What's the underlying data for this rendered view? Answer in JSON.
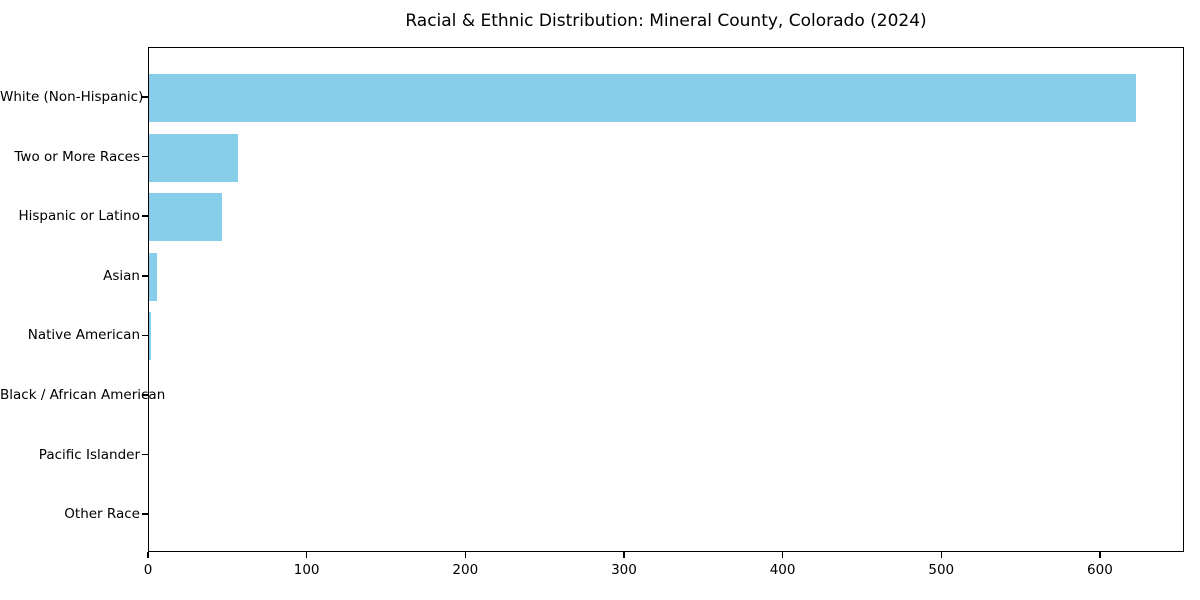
{
  "chart_data": {
    "type": "bar",
    "orientation": "horizontal",
    "title": "Racial & Ethnic Distribution: Mineral County, Colorado (2024)",
    "categories": [
      "White (Non-Hispanic)",
      "Two or More Races",
      "Hispanic or Latino",
      "Asian",
      "Native American",
      "Black / African American",
      "Pacific Islander",
      "Other Race"
    ],
    "values": [
      622,
      56,
      46,
      5,
      1,
      0,
      0,
      0
    ],
    "xlabel": "",
    "ylabel": "",
    "xlim": [
      0,
      653
    ],
    "xticks": [
      0,
      100,
      200,
      300,
      400,
      500,
      600
    ],
    "bar_color": "#87CEEB",
    "axis_color": "#000000",
    "background_color": "#FFFFFF",
    "grid": false,
    "legend": null
  }
}
